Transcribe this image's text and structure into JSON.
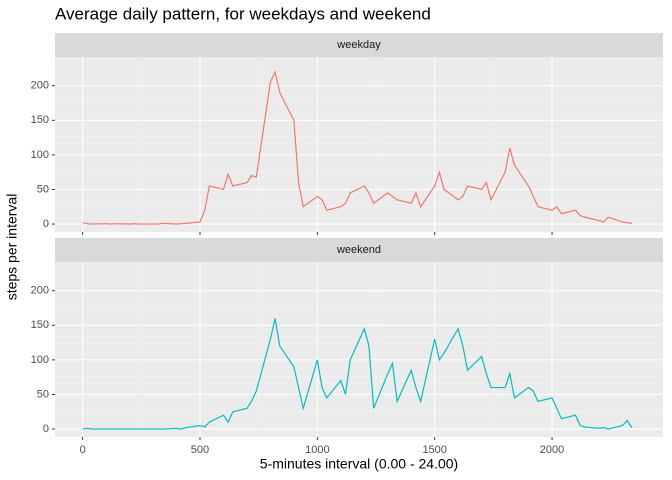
{
  "title": "Average daily pattern, for weekdays and weekend",
  "x_label": "5-minutes interval (0.00 - 24.00)",
  "y_label": "steps per interval",
  "chart_data": [
    {
      "type": "line",
      "strip": "weekday",
      "color": "#f8766d",
      "x": [
        0,
        20,
        40,
        100,
        120,
        140,
        200,
        220,
        240,
        300,
        320,
        340,
        400,
        420,
        440,
        500,
        520,
        540,
        600,
        620,
        640,
        700,
        720,
        740,
        800,
        820,
        840,
        900,
        920,
        940,
        1000,
        1020,
        1040,
        1100,
        1120,
        1140,
        1200,
        1220,
        1240,
        1300,
        1320,
        1340,
        1400,
        1420,
        1440,
        1500,
        1520,
        1540,
        1600,
        1620,
        1640,
        1700,
        1720,
        1740,
        1800,
        1820,
        1840,
        1900,
        1920,
        1940,
        2000,
        2020,
        2040,
        2100,
        2120,
        2140,
        2200,
        2220,
        2240,
        2300,
        2320,
        2340
      ],
      "values": [
        2,
        0.5,
        0,
        0.5,
        0,
        0.5,
        0,
        0.5,
        0,
        0,
        0,
        1,
        0,
        0.5,
        1,
        3,
        20,
        55,
        50,
        72,
        55,
        60,
        70,
        68,
        205,
        220,
        190,
        150,
        60,
        25,
        40,
        35,
        20,
        25,
        30,
        45,
        55,
        45,
        30,
        45,
        40,
        35,
        30,
        45,
        25,
        55,
        75,
        50,
        35,
        40,
        55,
        50,
        60,
        35,
        75,
        110,
        85,
        55,
        40,
        25,
        20,
        25,
        15,
        20,
        12,
        10,
        5,
        3,
        10,
        3,
        2,
        1
      ],
      "xlim": [
        -117.75,
        2472.75
      ],
      "xticks": [
        0,
        500,
        1000,
        1500,
        2000
      ],
      "ylim": [
        -11.5,
        241.5
      ],
      "yticks": [
        0,
        50,
        100,
        150,
        200
      ]
    },
    {
      "type": "line",
      "strip": "weekend",
      "color": "#00bfc4",
      "x": [
        0,
        20,
        40,
        100,
        120,
        140,
        200,
        220,
        240,
        300,
        320,
        340,
        400,
        420,
        440,
        500,
        520,
        540,
        600,
        620,
        640,
        700,
        720,
        740,
        800,
        820,
        840,
        900,
        920,
        940,
        1000,
        1020,
        1040,
        1100,
        1120,
        1140,
        1200,
        1220,
        1240,
        1300,
        1320,
        1340,
        1400,
        1420,
        1440,
        1500,
        1520,
        1540,
        1600,
        1620,
        1640,
        1700,
        1720,
        1740,
        1800,
        1820,
        1840,
        1900,
        1920,
        1940,
        2000,
        2020,
        2040,
        2100,
        2120,
        2140,
        2200,
        2220,
        2240,
        2300,
        2320,
        2340
      ],
      "values": [
        0,
        1,
        0,
        0,
        0,
        0,
        0,
        0,
        0,
        0,
        0,
        0,
        1,
        0,
        2,
        5,
        3,
        10,
        20,
        10,
        25,
        30,
        40,
        55,
        130,
        160,
        120,
        90,
        60,
        30,
        100,
        60,
        45,
        70,
        50,
        100,
        145,
        120,
        30,
        80,
        95,
        40,
        85,
        60,
        40,
        130,
        100,
        110,
        145,
        120,
        85,
        105,
        80,
        60,
        60,
        80,
        45,
        60,
        55,
        40,
        45,
        30,
        15,
        20,
        5,
        3,
        1,
        2,
        0,
        5,
        12,
        2
      ],
      "xlim": [
        -117.75,
        2472.75
      ],
      "xticks": [
        0,
        500,
        1000,
        1500,
        2000
      ],
      "ylim": [
        -11.5,
        241.5
      ],
      "yticks": [
        0,
        50,
        100,
        150,
        200
      ]
    }
  ]
}
